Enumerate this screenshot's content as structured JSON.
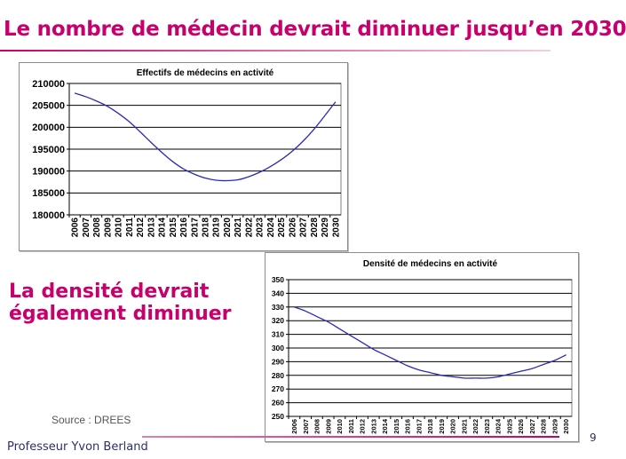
{
  "slide": {
    "title": "Le nombre de médecin devrait diminuer jusqu’en 2030",
    "subtitle_line1": "La densité devrait",
    "subtitle_line2": "également diminuer",
    "source": "Source : DREES",
    "presenter": "Professeur Yvon Berland",
    "page_number": "9"
  },
  "colors": {
    "accent": "#c8006e",
    "footer_text": "#2b2f6b",
    "series_line": "#2a2ab8"
  },
  "chart_data": [
    {
      "type": "line",
      "title": "Effectifs de médecins en activité",
      "xlabel": "",
      "ylabel": "",
      "x": [
        "2006",
        "2007",
        "2008",
        "2009",
        "2010",
        "2011",
        "2012",
        "2013",
        "2014",
        "2015",
        "2016",
        "2017",
        "2018",
        "2019",
        "2020",
        "2021",
        "2022",
        "2023",
        "2024",
        "2025",
        "2026",
        "2027",
        "2028",
        "2029",
        "2030"
      ],
      "series": [
        {
          "values": [
            207800,
            207000,
            206000,
            204800,
            203200,
            201300,
            199000,
            196600,
            194300,
            192200,
            190500,
            189300,
            188400,
            187900,
            187800,
            188000,
            188700,
            189700,
            191000,
            192600,
            194500,
            196800,
            199500,
            202600,
            205800
          ]
        }
      ],
      "ylim": [
        180000,
        210000
      ],
      "yticks": [
        "180000",
        "185000",
        "190000",
        "195000",
        "200000",
        "205000",
        "210000"
      ],
      "grid": true,
      "legend": "none"
    },
    {
      "type": "line",
      "title": "Densité de médecins en activité",
      "xlabel": "",
      "ylabel": "",
      "x": [
        "2006",
        "2007",
        "2008",
        "2009",
        "2010",
        "2011",
        "2012",
        "2013",
        "2014",
        "2015",
        "2016",
        "2017",
        "2018",
        "2019",
        "2020",
        "2021",
        "2022",
        "2023",
        "2024",
        "2025",
        "2026",
        "2027",
        "2028",
        "2029",
        "2030"
      ],
      "series": [
        {
          "values": [
            330,
            327,
            323,
            319,
            314,
            309,
            304,
            299,
            295,
            291,
            287,
            284,
            282,
            280,
            279,
            278,
            278,
            278,
            279,
            281,
            283,
            285,
            288,
            291,
            295
          ]
        }
      ],
      "ylim": [
        250,
        350
      ],
      "yticks": [
        "250",
        "260",
        "270",
        "280",
        "290",
        "300",
        "310",
        "320",
        "330",
        "340",
        "350"
      ],
      "grid": true,
      "legend": "none"
    }
  ]
}
